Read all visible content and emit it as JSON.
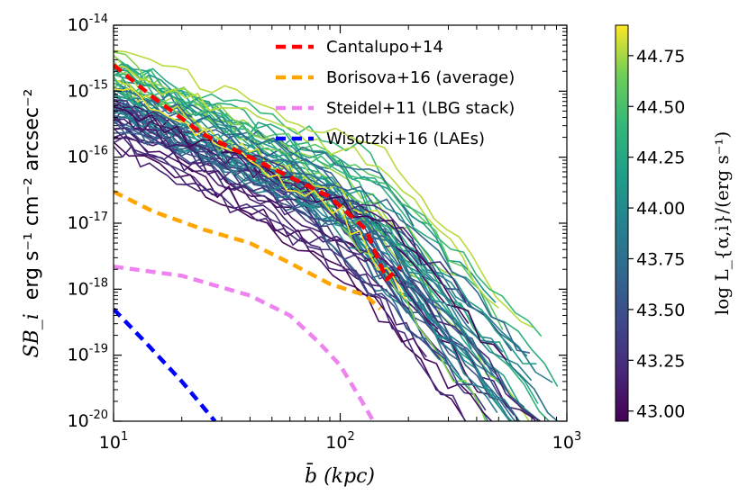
{
  "chart_data": {
    "type": "line",
    "xscale": "log",
    "yscale": "log",
    "xlim": [
      10,
      1000
    ],
    "ylim": [
      1e-20,
      1e-14
    ],
    "xlabel": "b̄ (kpc)",
    "ylabel_math": "SB_i",
    "ylabel_text": "erg s⁻¹ cm⁻² arcsec⁻²",
    "x_ticks": [
      {
        "base": "10",
        "exp": "1",
        "value": 10
      },
      {
        "base": "10",
        "exp": "2",
        "value": 100
      },
      {
        "base": "10",
        "exp": "3",
        "value": 1000
      }
    ],
    "y_ticks": [
      {
        "base": "10",
        "exp": "-20",
        "value": 1e-20
      },
      {
        "base": "10",
        "exp": "-19",
        "value": 1e-19
      },
      {
        "base": "10",
        "exp": "-18",
        "value": 1e-18
      },
      {
        "base": "10",
        "exp": "-17",
        "value": 1e-17
      },
      {
        "base": "10",
        "exp": "-16",
        "value": 1e-16
      },
      {
        "base": "10",
        "exp": "-15",
        "value": 1e-15
      },
      {
        "base": "10",
        "exp": "-14",
        "value": 1e-14
      }
    ],
    "legend_position": "top-right",
    "reference_series": [
      {
        "name": "Cantalupo+14",
        "color": "#ff0000",
        "dash": "11,7",
        "x": [
          10,
          15,
          25,
          40,
          60,
          90,
          130,
          160,
          185
        ],
        "y": [
          2.5e-15,
          8e-16,
          2.2e-16,
          1e-16,
          5e-17,
          2.5e-17,
          8e-18,
          1.4e-18,
          2.2e-18
        ]
      },
      {
        "name": "Borisova+16 (average)",
        "color": "#ffa500",
        "dash": "11,7",
        "x": [
          10,
          15,
          25,
          40,
          60,
          90,
          130,
          150
        ],
        "y": [
          3e-17,
          1.5e-17,
          8e-18,
          5e-18,
          2.5e-18,
          1.2e-18,
          8e-19,
          5e-19
        ]
      },
      {
        "name": "Steidel+11 (LBG stack)",
        "color": "#ee82ee",
        "dash": "11,7",
        "x": [
          10,
          20,
          40,
          60,
          80,
          100,
          120,
          140
        ],
        "y": [
          2.2e-18,
          1.6e-18,
          8e-19,
          4e-19,
          1.6e-19,
          7e-20,
          2.5e-20,
          1e-20
        ]
      },
      {
        "name": "Wisotzki+16 (LAEs)",
        "color": "#0000ff",
        "dash": "11,7",
        "x": [
          10,
          14,
          20,
          25,
          28
        ],
        "y": [
          5e-19,
          1.5e-19,
          4e-20,
          1.6e-20,
          1e-20
        ]
      }
    ],
    "sample_profiles": {
      "description_value_range": [
        42.95,
        44.9
      ],
      "n_profiles": 70,
      "x_range": [
        10,
        1000
      ]
    },
    "colorbar": {
      "label": "log L_{α,i}/(erg s⁻¹)",
      "vmin": 42.95,
      "vmax": 44.9,
      "colormap": "viridis",
      "ticks": [
        "43.00",
        "43.25",
        "43.50",
        "43.75",
        "44.00",
        "44.25",
        "44.50",
        "44.75"
      ],
      "tick_values": [
        43.0,
        43.25,
        43.5,
        43.75,
        44.0,
        44.25,
        44.5,
        44.75
      ]
    }
  }
}
